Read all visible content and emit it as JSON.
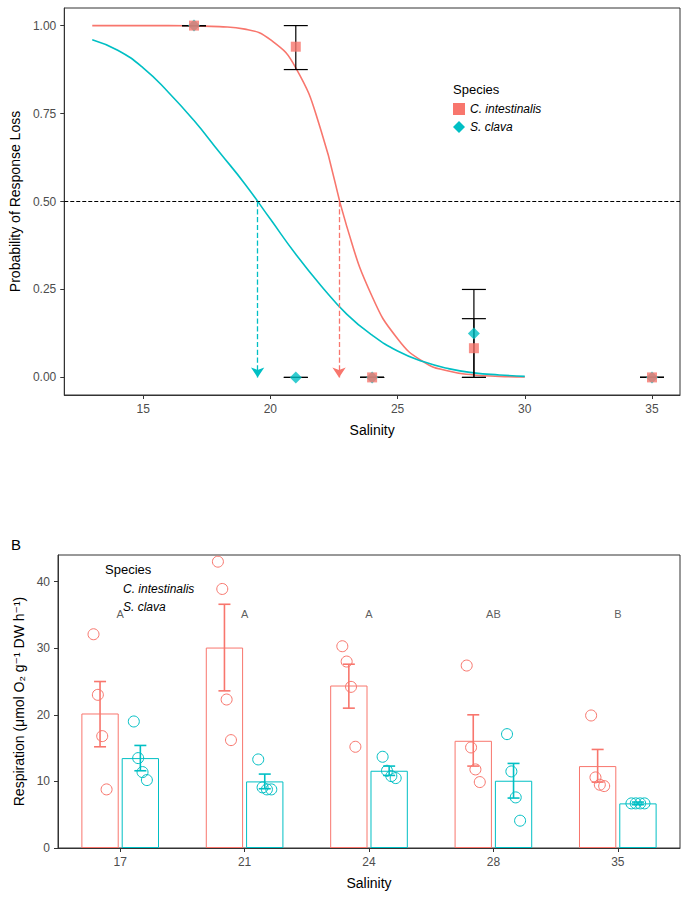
{
  "chart_data": [
    {
      "type": "line",
      "x_label": "Salinity",
      "y_label": "Probability of Response Loss",
      "legend_title": "Species",
      "legend": "top-right",
      "grid": false,
      "xlim": [
        11.9,
        36.1
      ],
      "xticks": [
        15,
        20,
        25,
        30,
        35
      ],
      "ylim": [
        -0.05,
        1.05
      ],
      "yticks": [
        {
          "value": 0,
          "label": "0.00"
        },
        {
          "value": 0.25,
          "label": "0.25"
        },
        {
          "value": 0.5,
          "label": "0.50"
        },
        {
          "value": 0.75,
          "label": "0.75"
        },
        {
          "value": 1,
          "label": "1.00"
        }
      ],
      "reference_line": 0.5,
      "series": [
        {
          "name": "C. intestinalis",
          "color": "#F8766D",
          "marker": "square",
          "line_style": "solid",
          "x": [
            17,
            21,
            24,
            28,
            35
          ],
          "values": [
            1,
            0.94,
            0,
            0.083,
            0
          ],
          "error_low": [
            1,
            0.875,
            0,
            0,
            0
          ],
          "error_high": [
            1,
            1,
            0,
            0.167,
            0
          ],
          "threshold": 22.7,
          "curve_x": [
            13,
            14,
            15,
            16,
            17,
            18,
            19,
            20,
            21,
            22,
            23,
            24,
            25,
            26,
            27,
            28,
            29,
            30
          ],
          "curve_values": [
            1,
            1,
            1,
            1,
            0.999,
            0.997,
            0.99,
            0.96,
            0.88,
            0.7,
            0.43,
            0.23,
            0.11,
            0.045,
            0.018,
            0.007,
            0.003,
            0.001
          ]
        },
        {
          "name": "S. clava",
          "color": "#00BFC4",
          "marker": "diamond",
          "line_style": "solid",
          "x": [
            17,
            21,
            24,
            28,
            35
          ],
          "values": [
            1,
            0,
            0,
            0.125,
            0
          ],
          "error_low": [
            1,
            0,
            0,
            0,
            0
          ],
          "error_high": [
            1,
            0,
            0,
            0.25,
            0
          ],
          "threshold": 19.5,
          "curve_x": [
            13,
            14,
            15,
            16,
            17,
            18,
            19,
            20,
            21,
            22,
            23,
            24,
            25,
            26,
            27,
            28,
            29,
            30
          ],
          "curve_values": [
            0.96,
            0.93,
            0.88,
            0.81,
            0.73,
            0.64,
            0.55,
            0.45,
            0.35,
            0.26,
            0.18,
            0.12,
            0.075,
            0.045,
            0.025,
            0.013,
            0.007,
            0.003
          ]
        }
      ]
    },
    {
      "type": "bar",
      "panel_label": "B",
      "x_label": "Salinity",
      "y_label": "Respiration (μmol O₂ g⁻¹ DW h⁻¹)",
      "legend_title": "Species",
      "legend": "top-left",
      "grid": false,
      "categories": [
        "17",
        "21",
        "24",
        "28",
        "35"
      ],
      "ylim": [
        0,
        44
      ],
      "yticks": [
        0,
        10,
        20,
        30,
        40
      ],
      "group_labels": [
        "A",
        "A",
        "A",
        "AB",
        "B"
      ],
      "series": [
        {
          "name": "C. intestinalis",
          "color": "#F8766D",
          "marker": "circle",
          "values": [
            20.2,
            30.1,
            24.4,
            16.1,
            12.3
          ],
          "error_low": [
            15.2,
            23.6,
            21.0,
            12.3,
            9.9
          ],
          "error_high": [
            25.0,
            36.6,
            27.6,
            20.0,
            14.8
          ],
          "points": [
            [
              32.1,
              23.0,
              16.8,
              8.8
            ],
            [
              43.0,
              38.9,
              22.3,
              16.2
            ],
            [
              30.3,
              28.0,
              24.2,
              15.2
            ],
            [
              27.4,
              15.1,
              11.8,
              9.9
            ],
            [
              19.9,
              10.6,
              9.5,
              9.3
            ]
          ]
        },
        {
          "name": "S. clava",
          "color": "#00BFC4",
          "marker": "circle",
          "values": [
            13.5,
            10.0,
            11.6,
            10.1,
            6.7
          ],
          "error_low": [
            11.6,
            8.9,
            10.9,
            7.5,
            6.5
          ],
          "error_high": [
            15.4,
            11.1,
            12.3,
            12.7,
            6.9
          ],
          "points": [
            [
              19.0,
              13.5,
              11.4,
              10.2
            ],
            [
              13.3,
              9.1,
              8.8,
              8.8
            ],
            [
              13.7,
              11.6,
              10.8,
              10.5
            ],
            [
              17.1,
              11.5,
              7.6,
              4.1
            ],
            [
              6.7,
              6.7,
              6.7,
              6.7
            ]
          ]
        }
      ]
    }
  ]
}
